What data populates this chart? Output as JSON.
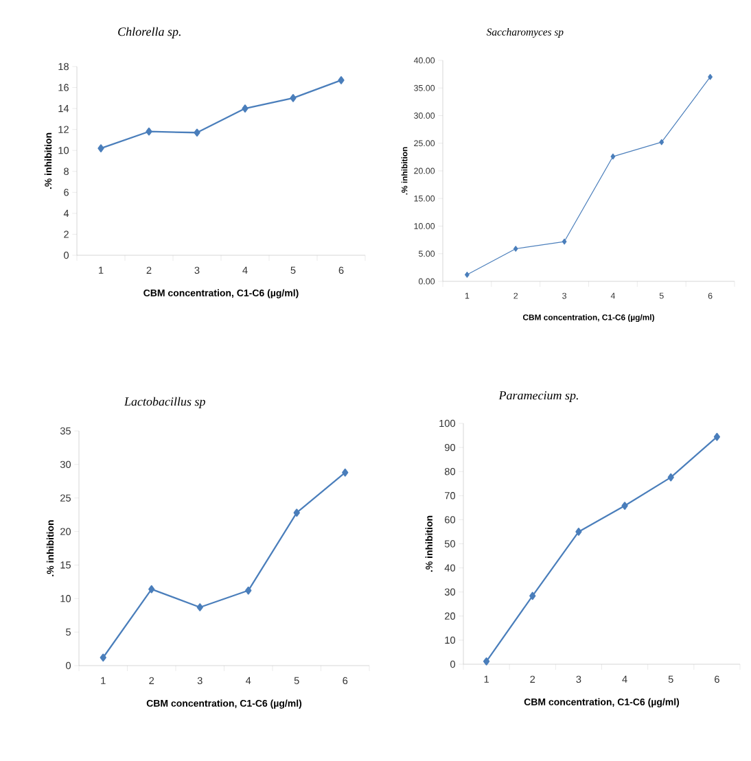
{
  "chart_data": [
    {
      "type": "line",
      "title": "Chlorella sp.",
      "xlabel": "CBM concentration, C1-C6 (µg/ml)",
      "ylabel": ".% inhibition",
      "categories": [
        "1",
        "2",
        "3",
        "4",
        "5",
        "6"
      ],
      "color": "#4a7ebb",
      "marker": "diamond",
      "line_style": "solid",
      "values": [
        10.2,
        11.8,
        11.7,
        14.0,
        15.0,
        16.7
      ],
      "ylim": [
        0,
        18
      ],
      "yticks": [
        0,
        2,
        4,
        6,
        8,
        10,
        12,
        14,
        16,
        18
      ]
    },
    {
      "type": "line",
      "title": "Saccharomyces sp",
      "xlabel": "CBM concentration, C1-C6 (µg/ml)",
      "ylabel": ".% inhibition",
      "categories": [
        "1",
        "2",
        "3",
        "4",
        "5",
        "6"
      ],
      "color": "#4a7ebb",
      "marker": "diamond",
      "line_style": "solid",
      "values": [
        1.2,
        5.9,
        7.2,
        22.6,
        25.2,
        37.0
      ],
      "ylim": [
        0,
        40
      ],
      "yticks": [
        {
          "value": 0,
          "label": "0.00"
        },
        {
          "value": 5,
          "label": "5.00"
        },
        {
          "value": 10,
          "label": "10.00"
        },
        {
          "value": 15,
          "label": "15.00"
        },
        {
          "value": 20,
          "label": "20.00"
        },
        {
          "value": 25,
          "label": "25.00"
        },
        {
          "value": 30,
          "label": "30.00"
        },
        {
          "value": 35,
          "label": "35.00"
        },
        {
          "value": 40,
          "label": "40.00"
        }
      ]
    },
    {
      "type": "line",
      "title": "Lactobacillus sp",
      "xlabel": "CBM concentration, C1-C6 (µg/ml)",
      "ylabel": ".% inhibition",
      "categories": [
        "1",
        "2",
        "3",
        "4",
        "5",
        "6"
      ],
      "color": "#4a7ebb",
      "marker": "diamond",
      "line_style": "solid",
      "values": [
        1.2,
        11.4,
        8.7,
        11.2,
        22.8,
        28.8
      ],
      "ylim": [
        0,
        35
      ],
      "yticks": [
        0,
        5,
        10,
        15,
        20,
        25,
        30,
        35
      ]
    },
    {
      "type": "line",
      "title": "Paramecium sp.",
      "xlabel": "CBM concentration, C1-C6 (µg/ml)",
      "ylabel": ".% inhibition",
      "categories": [
        "1",
        "2",
        "3",
        "4",
        "5",
        "6"
      ],
      "color": "#4a7ebb",
      "marker": "diamond",
      "line_style": "solid",
      "values": [
        1.2,
        28.4,
        55.0,
        65.8,
        77.6,
        94.4
      ],
      "ylim": [
        0,
        100
      ],
      "yticks": [
        0,
        10,
        20,
        30,
        40,
        50,
        60,
        70,
        80,
        90,
        100
      ]
    }
  ]
}
